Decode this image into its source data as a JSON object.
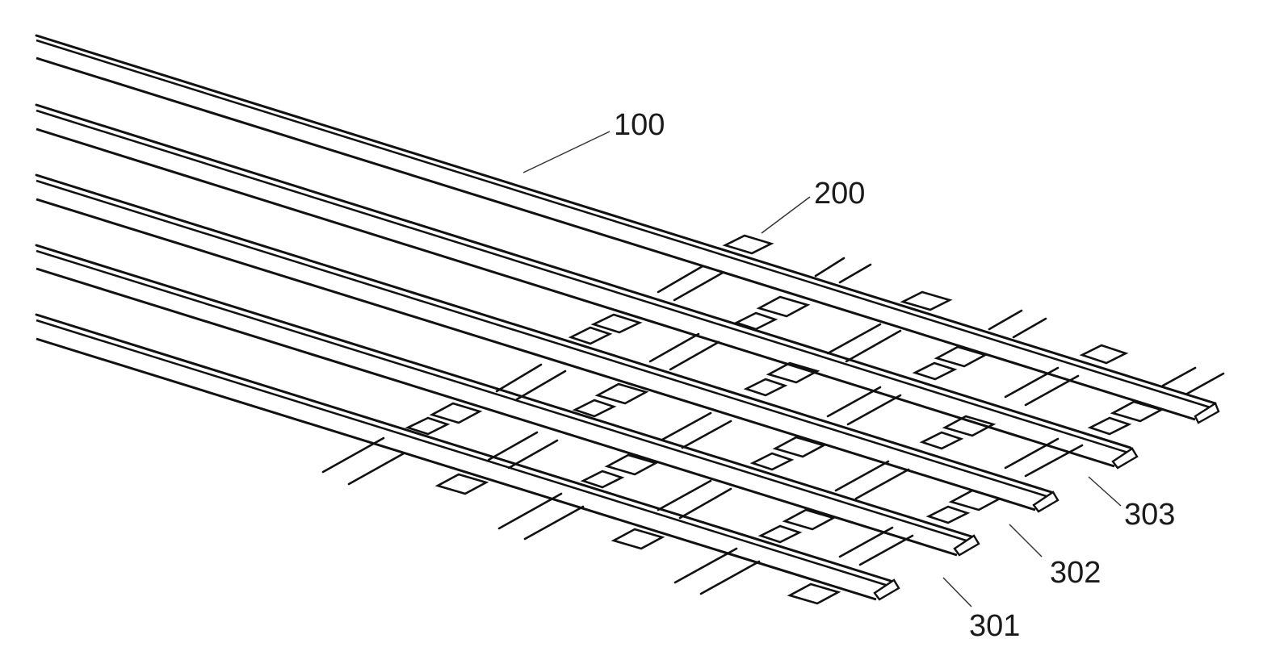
{
  "figure": {
    "labels": [
      {
        "id": "label-100",
        "text": "100"
      },
      {
        "id": "label-200",
        "text": "200"
      },
      {
        "id": "label-301",
        "text": "301"
      },
      {
        "id": "label-302",
        "text": "302"
      },
      {
        "id": "label-303",
        "text": "303"
      }
    ]
  }
}
